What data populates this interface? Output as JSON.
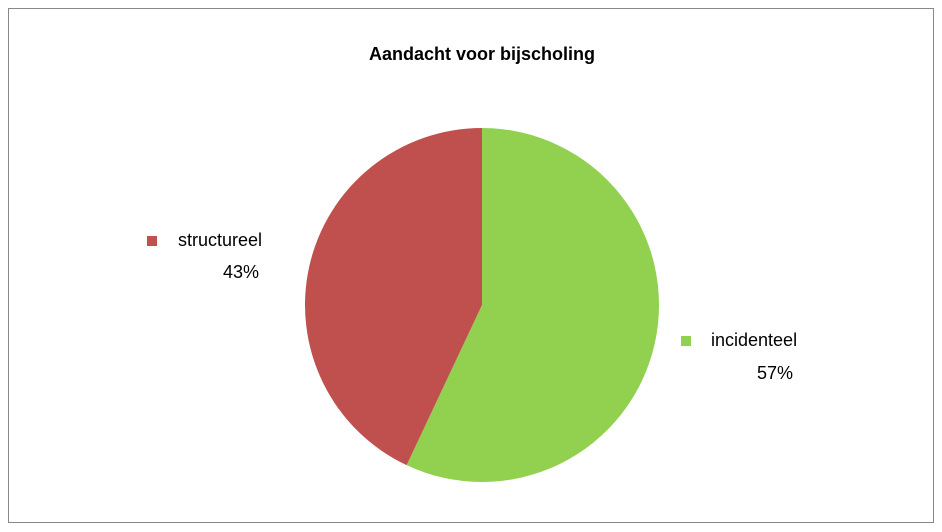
{
  "chart_data": {
    "type": "pie",
    "title": "Aandacht voor bijscholing",
    "categories": [
      "incidenteel",
      "structureel"
    ],
    "values": [
      57,
      43
    ],
    "value_labels": [
      "57%",
      "43%"
    ],
    "colors": [
      "#92d050",
      "#c0504d"
    ]
  }
}
